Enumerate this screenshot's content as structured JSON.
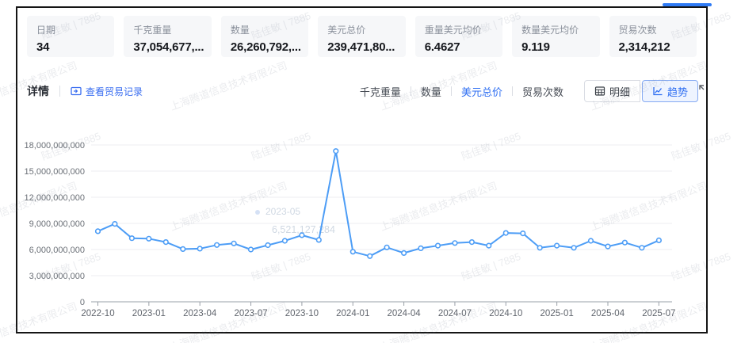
{
  "stats": [
    {
      "label": "日期",
      "value": "34"
    },
    {
      "label": "千克重量",
      "value": "37,054,677,..."
    },
    {
      "label": "数量",
      "value": "26,260,792,..."
    },
    {
      "label": "美元总价",
      "value": "239,471,80..."
    },
    {
      "label": "重量美元均价",
      "value": "6.4627"
    },
    {
      "label": "数量美元均价",
      "value": "9.119"
    },
    {
      "label": "贸易次数",
      "value": "2,314,212"
    }
  ],
  "toolbar": {
    "title": "详情",
    "link_label": "查看贸易记录",
    "metrics": [
      {
        "label": "千克重量",
        "active": false
      },
      {
        "label": "数量",
        "active": false
      },
      {
        "label": "美元总价",
        "active": true
      },
      {
        "label": "贸易次数",
        "active": false
      }
    ],
    "view_detail_label": "明细",
    "view_trend_label": "趋势"
  },
  "ghost_tooltip": {
    "date": "2023-05",
    "value": "6,521,127,284"
  },
  "watermark": {
    "texts": [
      "上海腾道信息技术有限公司",
      "陆佳敏 | 7885"
    ]
  },
  "colors": {
    "accent": "#2F6FF2",
    "line": "#4D9DF6",
    "link": "#3A6EF0",
    "tab_bar": "#2F7BF5"
  },
  "chart_data": {
    "type": "line",
    "series_name": "美元总价",
    "x": [
      "2022-10",
      "2022-11",
      "2022-12",
      "2023-01",
      "2023-02",
      "2023-03",
      "2023-04",
      "2023-05",
      "2023-06",
      "2023-07",
      "2023-08",
      "2023-09",
      "2023-10",
      "2023-11",
      "2023-12",
      "2024-01",
      "2024-02",
      "2024-03",
      "2024-04",
      "2024-05",
      "2024-06",
      "2024-07",
      "2024-08",
      "2024-09",
      "2024-10",
      "2024-11",
      "2024-12",
      "2025-01",
      "2025-02",
      "2025-03",
      "2025-04",
      "2025-05",
      "2025-06",
      "2025-07"
    ],
    "values": [
      8100000000,
      8950000000,
      7300000000,
      7250000000,
      6850000000,
      6050000000,
      6100000000,
      6521127284,
      6700000000,
      6000000000,
      6500000000,
      7000000000,
      7650000000,
      7100000000,
      17300000000,
      5750000000,
      5250000000,
      6250000000,
      5600000000,
      6150000000,
      6450000000,
      6750000000,
      6850000000,
      6450000000,
      7900000000,
      7850000000,
      6200000000,
      6450000000,
      6200000000,
      7000000000,
      6350000000,
      6800000000,
      6200000000,
      7050000000
    ],
    "ylim": [
      0,
      18000000000
    ],
    "ytick_step": 3000000000,
    "ytick_labels": [
      "0",
      "3,000,000,000",
      "6,000,000,000",
      "9,000,000,000",
      "12,000,000,000",
      "15,000,000,000",
      "18,000,000,000"
    ],
    "xtick_every": 3,
    "grid": true,
    "line_color": "#4D9DF6",
    "legend": "none"
  }
}
